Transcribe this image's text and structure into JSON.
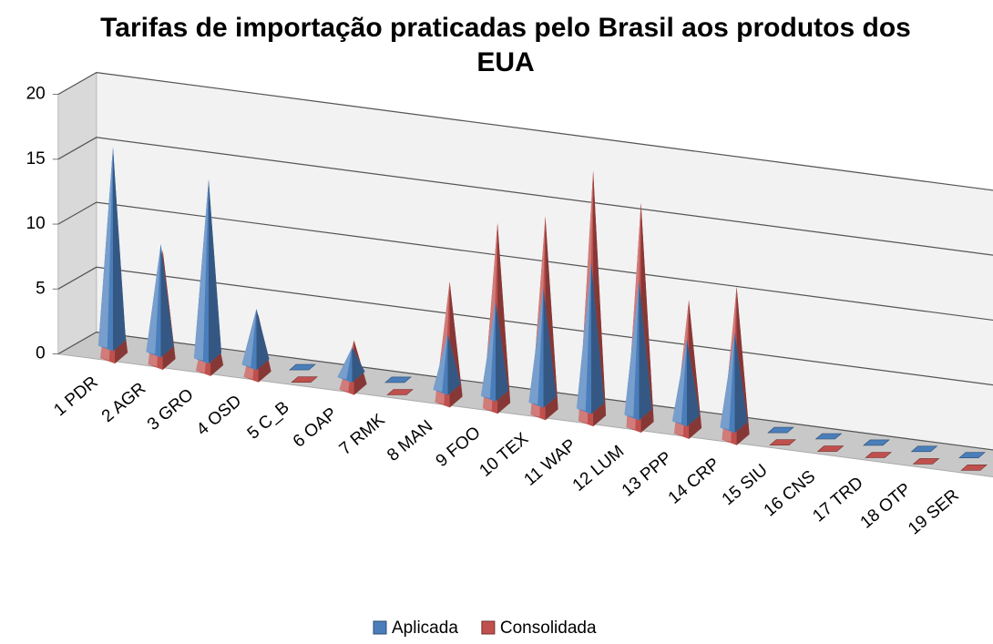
{
  "chart_data": {
    "type": "pyramid3d",
    "title": "Tarifas de importação praticadas pelo Brasil aos produtos dos EUA",
    "categories": [
      "1 PDR",
      "2 AGR",
      "3 GRO",
      "4 OSD",
      "5 C_B",
      "6 OAP",
      "7 RMK",
      "8 MAN",
      "9 FOO",
      "10 TEX",
      "11 WAP",
      "12 LUM",
      "13 PPP",
      "14 CRP",
      "15 SIU",
      "16 CNS",
      "17 TRD",
      "18 OTP",
      "19 SER"
    ],
    "series": [
      {
        "name": "Aplicada",
        "color": "#4a7ebb",
        "values": [
          15,
          8,
          13.5,
          4,
          0,
          2,
          0,
          4,
          7,
          8.5,
          11,
          10,
          6,
          7,
          0,
          0,
          0,
          0,
          0
        ]
      },
      {
        "name": "Consolidada",
        "color": "#c0504d",
        "values": [
          8,
          8.5,
          5,
          4.5,
          0,
          3.5,
          0,
          9,
          14,
          15,
          19,
          17,
          10,
          11.5,
          0,
          0,
          0,
          0,
          0
        ]
      }
    ],
    "ylim": [
      0,
      20
    ],
    "yticks": [
      0,
      5,
      10,
      15,
      20
    ],
    "grid": true,
    "legend": "bottom"
  }
}
